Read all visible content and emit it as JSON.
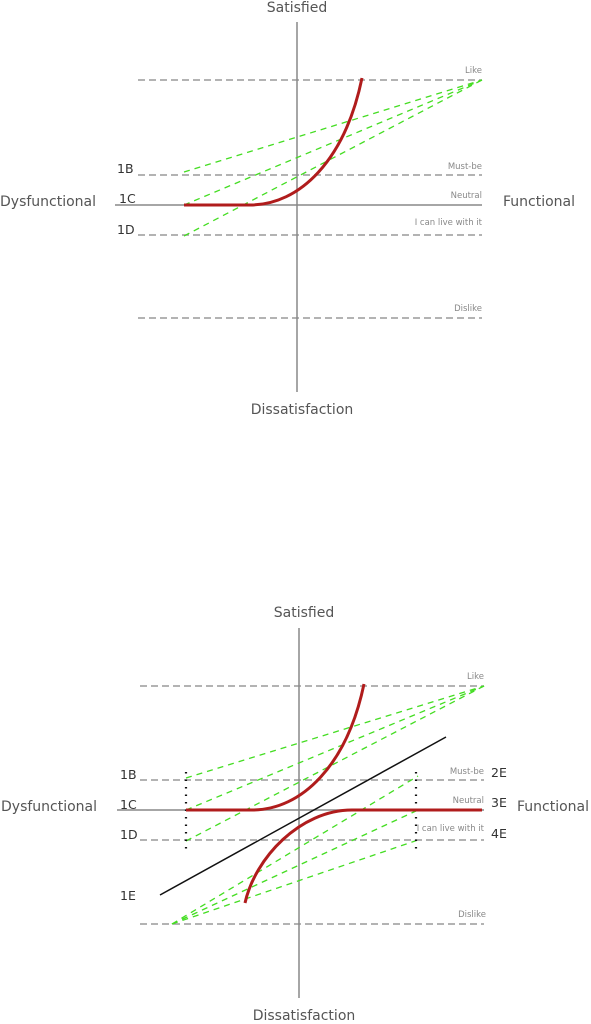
{
  "colors": {
    "axis": "#888888",
    "level_line": "#9a9a9a",
    "green_dash": "#44dd22",
    "red_curve": "#b01c1c",
    "black_line": "#111111",
    "text": "#555555"
  },
  "top_diagram": {
    "axis_labels": {
      "top": "Satisfied",
      "bottom": "Dissatisfaction",
      "left": "Dysfunctional",
      "right": "Functional"
    },
    "levels": [
      "Like",
      "Must-be",
      "Neutral",
      "I can live with it",
      "Dislike"
    ],
    "codes": [
      "1B",
      "1C",
      "1D"
    ]
  },
  "bottom_diagram": {
    "axis_labels": {
      "top": "Satisfied",
      "bottom": "Dissatisfaction",
      "left": "Dysfunctional",
      "right": "Functional"
    },
    "levels": [
      "Like",
      "Must-be",
      "Neutral",
      "I can live with it",
      "Dislike"
    ],
    "codes_left": [
      "1B",
      "1C",
      "1D",
      "1E"
    ],
    "codes_right": [
      "2E",
      "3E",
      "4E"
    ]
  }
}
